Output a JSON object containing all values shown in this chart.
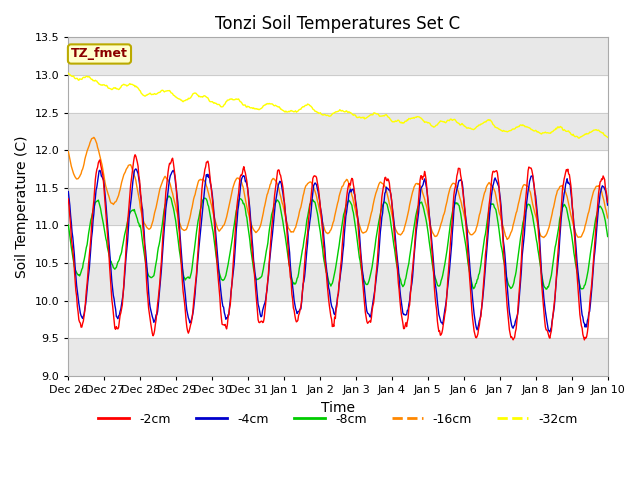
{
  "title": "Tonzi Soil Temperatures Set C",
  "xlabel": "Time",
  "ylabel": "Soil Temperature (C)",
  "ylim": [
    9.0,
    13.5
  ],
  "yticks": [
    9.0,
    9.5,
    10.0,
    10.5,
    11.0,
    11.5,
    12.0,
    12.5,
    13.0,
    13.5
  ],
  "xtick_labels": [
    "Dec 26",
    "Dec 27",
    "Dec 28",
    "Dec 29",
    "Dec 30",
    "Dec 31",
    "Jan 1",
    "Jan 2",
    "Jan 3",
    "Jan 4",
    "Jan 5",
    "Jan 6",
    "Jan 7",
    "Jan 8",
    "Jan 9",
    "Jan 10"
  ],
  "legend_label": "TZ_fmet",
  "legend_text_color": "#8B0000",
  "legend_bg_color": "#FFFFCC",
  "legend_edge_color": "#BBAA00",
  "line_colors": {
    "-2cm": "#FF0000",
    "-4cm": "#0000CC",
    "-8cm": "#00CC00",
    "-16cm": "#FF8800",
    "-32cm": "#FFFF00"
  },
  "legend_entries": [
    "-2cm",
    "-4cm",
    "-8cm",
    "-16cm",
    "-32cm"
  ],
  "legend_colors": [
    "#FF0000",
    "#0000CC",
    "#00CC00",
    "#FF8800",
    "#FFFF00"
  ],
  "bg_color": "#FFFFFF",
  "plot_bg_color": "#FFFFFF",
  "band_color": "#E8E8E8",
  "grid_color": "#CCCCCC"
}
